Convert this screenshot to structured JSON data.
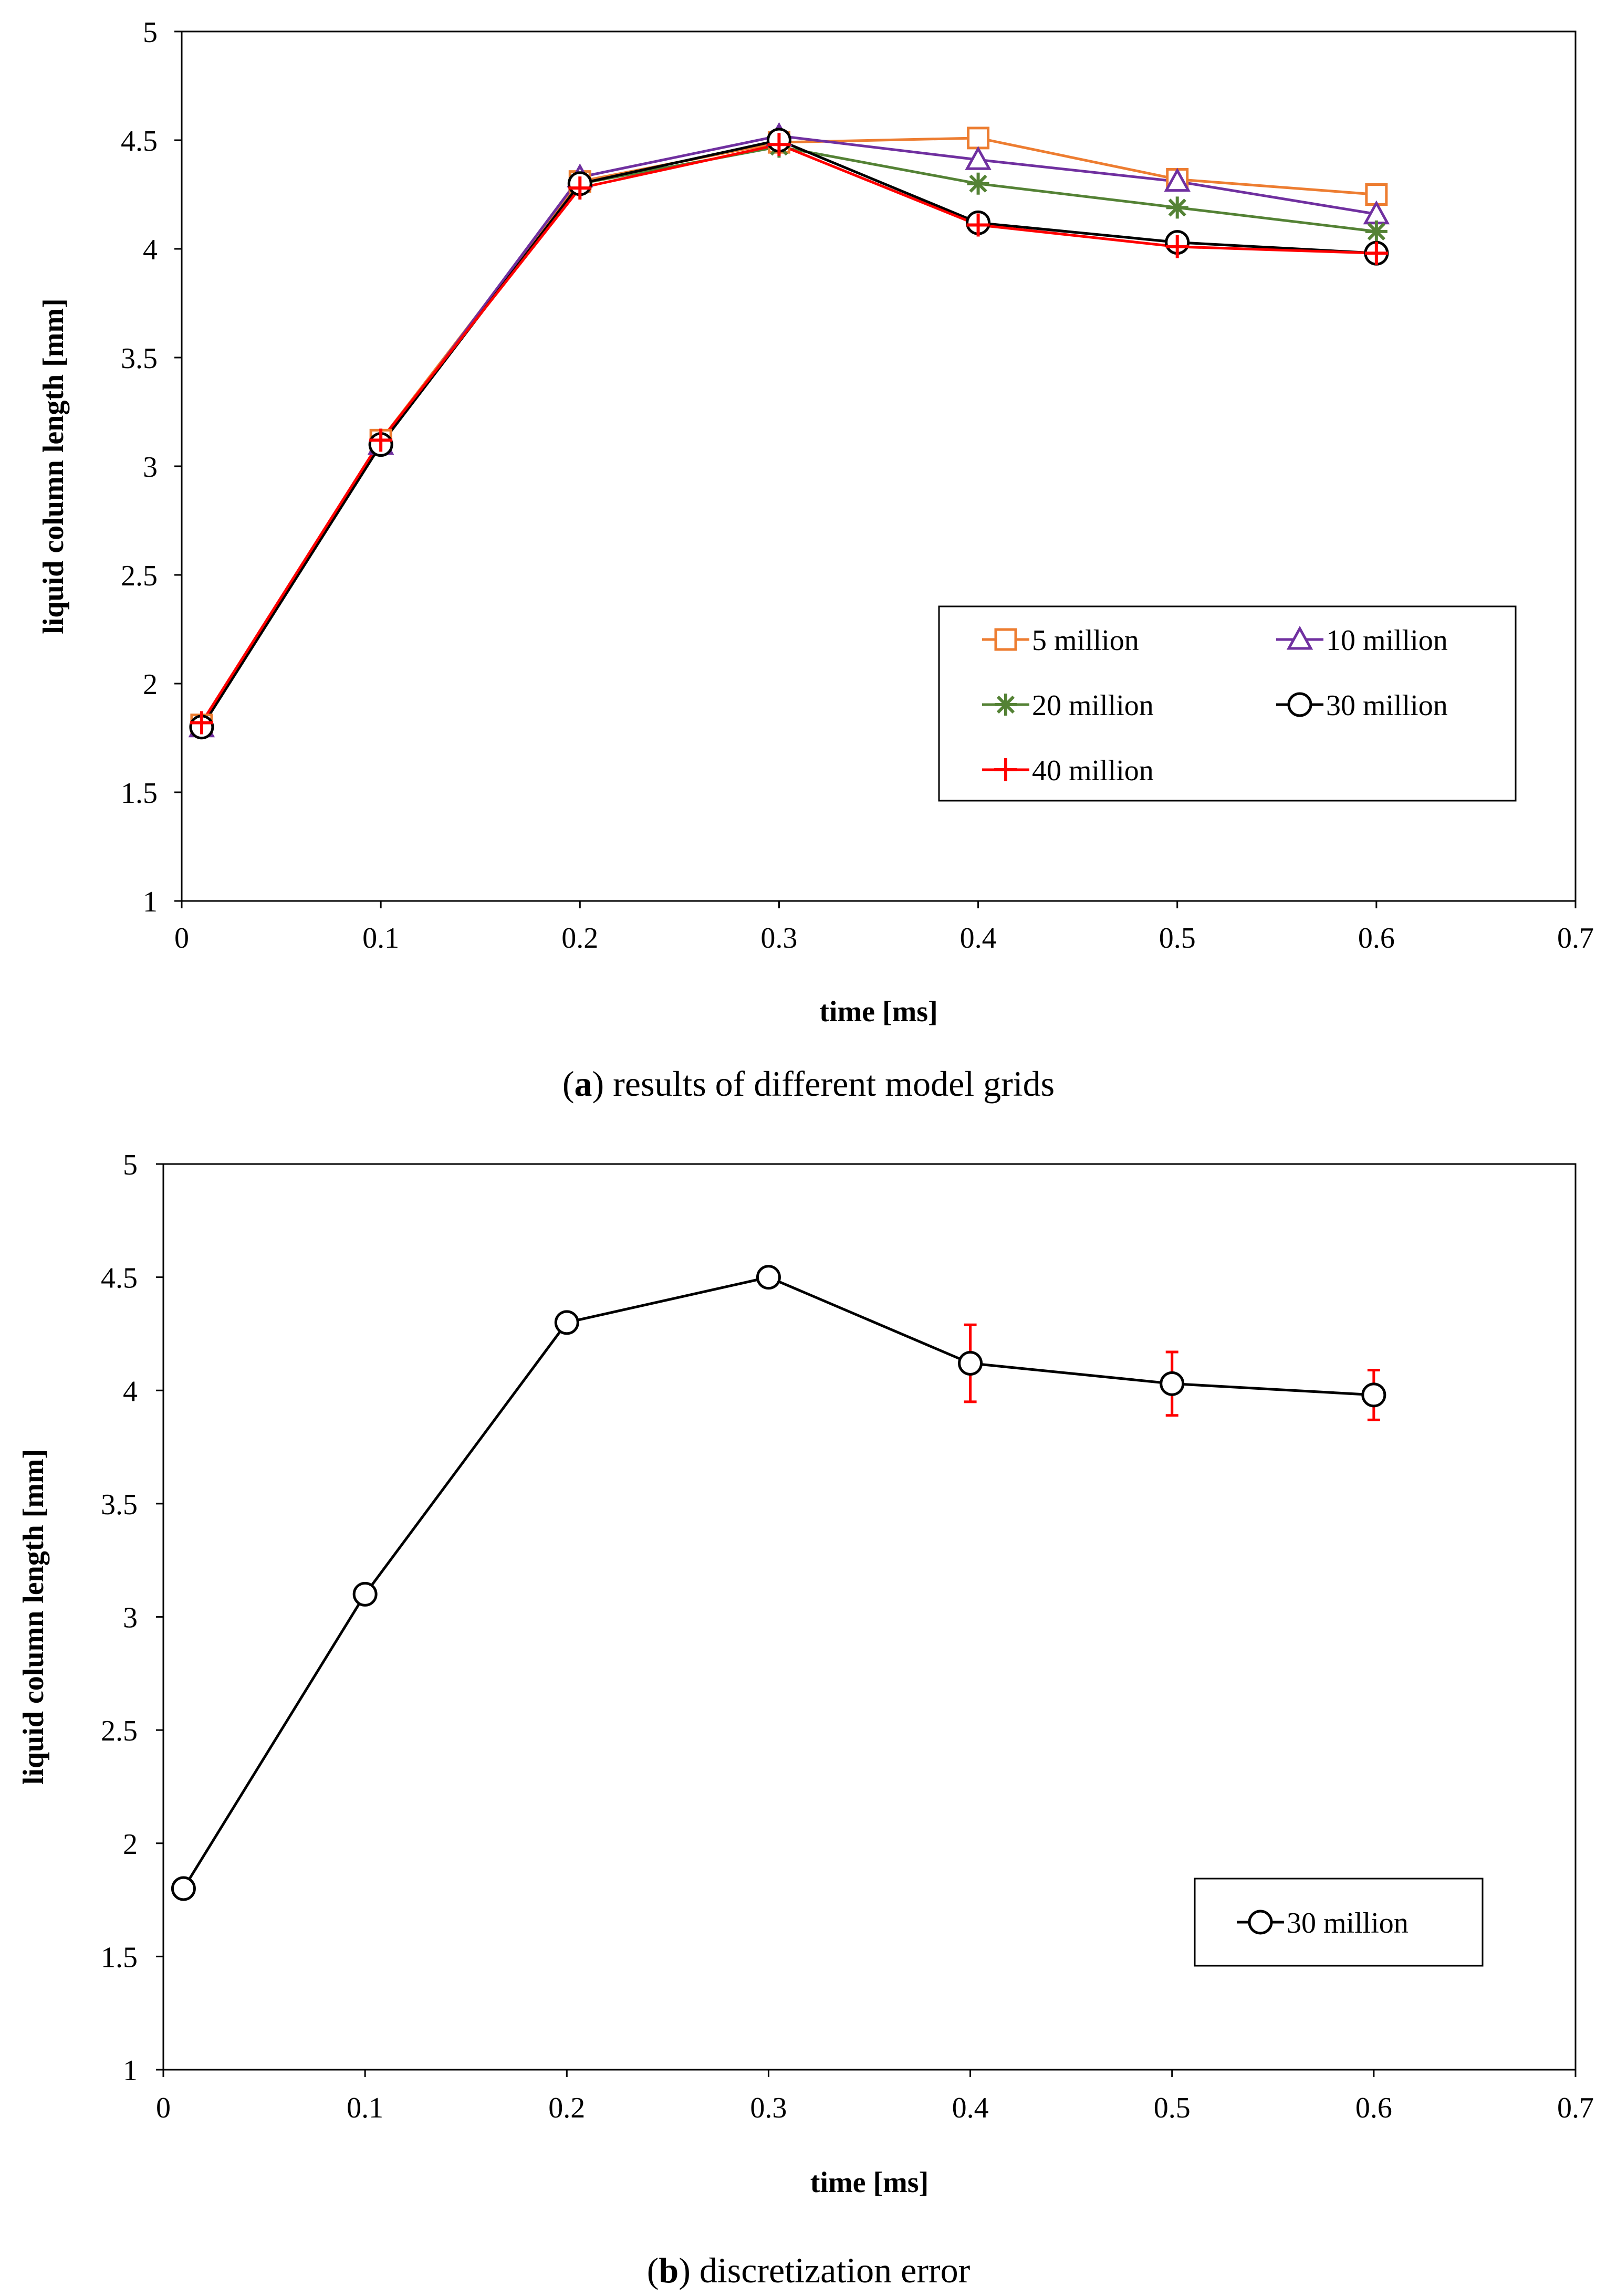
{
  "chart_data": [
    {
      "type": "line",
      "title": "",
      "caption_letter": "a",
      "caption_text": ") results of different model grids",
      "xlabel": "time [ms]",
      "ylabel": "liquid column length [mm]",
      "xlim": [
        0,
        0.7
      ],
      "ylim": [
        1,
        5
      ],
      "xticks": [
        0,
        0.1,
        0.2,
        0.3,
        0.4,
        0.5,
        0.6,
        0.7
      ],
      "xtick_labels": [
        "0",
        "0.1",
        "0.2",
        "0.3",
        "0.4",
        "0.5",
        "0.6",
        "0.7"
      ],
      "yticks": [
        1,
        1.5,
        2,
        2.5,
        3,
        3.5,
        4,
        4.5,
        5
      ],
      "ytick_labels": [
        "1",
        "1.5",
        "2",
        "2.5",
        "3",
        "3.5",
        "4",
        "4.5",
        "5"
      ],
      "grid": false,
      "legend_position": "lower-right",
      "x": [
        0.01,
        0.1,
        0.2,
        0.3,
        0.4,
        0.5,
        0.6
      ],
      "series": [
        {
          "name": "5 million",
          "color": "#ED7D31",
          "marker": "square",
          "values": [
            1.81,
            3.12,
            4.31,
            4.49,
            4.51,
            4.32,
            4.25
          ]
        },
        {
          "name": "10 million",
          "color": "#7030A0",
          "marker": "triangle",
          "values": [
            1.8,
            3.1,
            4.33,
            4.52,
            4.41,
            4.31,
            4.16
          ]
        },
        {
          "name": "20 million",
          "color": "#548235",
          "marker": "asterisk",
          "values": [
            1.8,
            3.1,
            4.3,
            4.47,
            4.3,
            4.19,
            4.08
          ]
        },
        {
          "name": "30 million",
          "color": "#000000",
          "marker": "circle",
          "values": [
            1.8,
            3.1,
            4.3,
            4.5,
            4.12,
            4.03,
            3.98
          ]
        },
        {
          "name": "40 million",
          "color": "#FF0000",
          "marker": "plus",
          "values": [
            1.82,
            3.12,
            4.28,
            4.48,
            4.11,
            4.01,
            3.98
          ]
        }
      ]
    },
    {
      "type": "line",
      "title": "",
      "caption_letter": "b",
      "caption_text": ") discretization error",
      "xlabel": "time [ms]",
      "ylabel": "liquid column length [mm]",
      "xlim": [
        0,
        0.7
      ],
      "ylim": [
        1,
        5
      ],
      "xticks": [
        0,
        0.1,
        0.2,
        0.3,
        0.4,
        0.5,
        0.6,
        0.7
      ],
      "xtick_labels": [
        "0",
        "0.1",
        "0.2",
        "0.3",
        "0.4",
        "0.5",
        "0.6",
        "0.7"
      ],
      "yticks": [
        1,
        1.5,
        2,
        2.5,
        3,
        3.5,
        4,
        4.5,
        5
      ],
      "ytick_labels": [
        "1",
        "1.5",
        "2",
        "2.5",
        "3",
        "3.5",
        "4",
        "4.5",
        "5"
      ],
      "grid": false,
      "legend_position": "lower-right",
      "x": [
        0.01,
        0.1,
        0.2,
        0.3,
        0.4,
        0.5,
        0.6
      ],
      "series": [
        {
          "name": "30 million",
          "color": "#000000",
          "marker": "circle",
          "values": [
            1.8,
            3.1,
            4.3,
            4.5,
            4.12,
            4.03,
            3.98
          ],
          "error_low": [
            1.78,
            3.1,
            4.3,
            4.5,
            3.95,
            3.89,
            3.87
          ],
          "error_high": [
            1.82,
            3.1,
            4.3,
            4.5,
            4.29,
            4.17,
            4.09
          ],
          "error_color": "#FF0000"
        }
      ]
    }
  ]
}
